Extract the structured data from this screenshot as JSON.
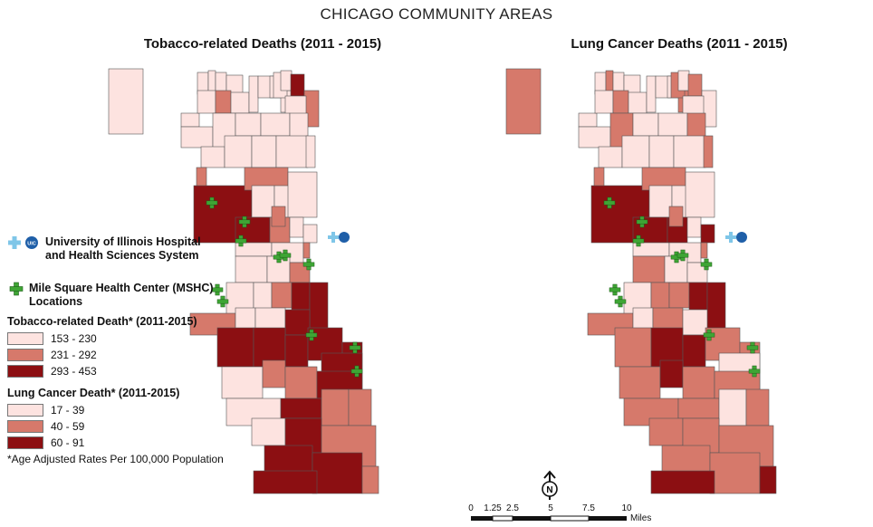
{
  "title": "CHICAGO COMMUNITY AREAS",
  "maps": [
    {
      "title": "Tobacco-related Deaths (2011 - 2015)"
    },
    {
      "title": "Lung Cancer Deaths (2011 - 2015)"
    }
  ],
  "facilities": {
    "uic_line1": "University of Illinois Hospital",
    "uic_line2": "and Health Sciences System",
    "uic_badge": "UIC",
    "mshc_line1": "Mile Square Health Center (MSHC)",
    "mshc_line2": "Locations"
  },
  "legend_tobacco": {
    "title": "Tobacco-related Death* (2011-2015)",
    "classes": [
      {
        "label": "153 - 230",
        "color": "#fde3e0"
      },
      {
        "label": "231 - 292",
        "color": "#d6796b"
      },
      {
        "label": "293 - 453",
        "color": "#8c0f12"
      }
    ]
  },
  "legend_lung": {
    "title": "Lung Cancer Death* (2011-2015)",
    "classes": [
      {
        "label": "17 - 39",
        "color": "#fde3e0"
      },
      {
        "label": "40 - 59",
        "color": "#d6796b"
      },
      {
        "label": "60 - 91",
        "color": "#8c0f12"
      }
    ]
  },
  "note": "*Age Adjusted Rates Per 100,000 Population",
  "north_label": "N",
  "scale": {
    "ticks": [
      "0",
      "1.25",
      "2.5",
      "5",
      "7.5",
      "10"
    ],
    "unit": "Miles"
  },
  "colors": {
    "low": "#fde3e0",
    "mid": "#d6796b",
    "high": "#8c0f12",
    "marker": "#3fa535",
    "border": "#555555"
  }
}
